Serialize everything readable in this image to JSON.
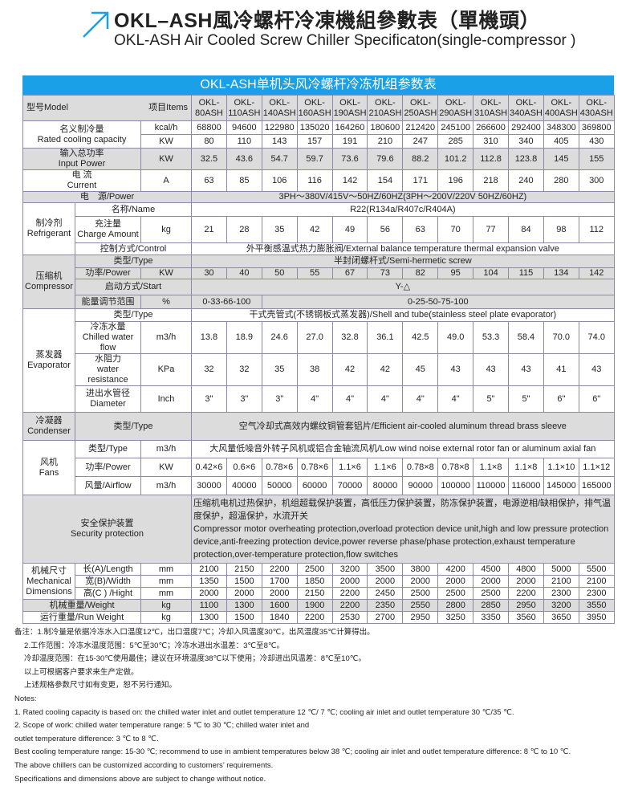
{
  "header": {
    "title": "OKL–ASH風冷螺杆冷凍機組參數表（單機頭）",
    "subtitle": "OKL-ASH Air Cooled Screw Chiller Specificaton(single-compressor )",
    "logo_icon": "arrow-up-right-icon",
    "accent": "#1aa0e6"
  },
  "table": {
    "banner": "OKL-ASH单机头风冷螺杆冷冻机组参数表",
    "model_label": "型号Model",
    "items_label": "项目Items",
    "models": [
      [
        "OKL-",
        "80ASH"
      ],
      [
        "OKL-",
        "110ASH"
      ],
      [
        "OKL-",
        "140ASH"
      ],
      [
        "OKL-",
        "160ASH"
      ],
      [
        "OKL-",
        "190ASH"
      ],
      [
        "OKL-",
        "210ASH"
      ],
      [
        "OKL-",
        "250ASH"
      ],
      [
        "OKL-",
        "290ASH"
      ],
      [
        "OKL-",
        "310ASH"
      ],
      [
        "OKL-",
        "340ASH"
      ],
      [
        "OKL-",
        "400ASH"
      ],
      [
        "OKL-",
        "430ASH"
      ]
    ],
    "cooling": {
      "cn": "名义制冷量",
      "en": "Rated cooling capacity",
      "unit1": "kcal/h",
      "values1": [
        "68800",
        "94600",
        "122980",
        "135020",
        "164260",
        "180600",
        "212420",
        "245100",
        "266600",
        "292400",
        "348300",
        "369800"
      ],
      "unit2": "KW",
      "values2": [
        "80",
        "110",
        "143",
        "157",
        "191",
        "210",
        "247",
        "285",
        "310",
        "340",
        "405",
        "430"
      ]
    },
    "input_power": {
      "cn": "输入总功率",
      "en": "Input Power",
      "unit": "KW",
      "values": [
        "32.5",
        "43.6",
        "54.7",
        "59.7",
        "73.6",
        "79.6",
        "88.2",
        "101.2",
        "112.8",
        "123.8",
        "145",
        "155"
      ]
    },
    "current": {
      "cn": "电 流",
      "en": "Current",
      "unit": "A",
      "values": [
        "63",
        "85",
        "106",
        "116",
        "142",
        "154",
        "171",
        "196",
        "218",
        "240",
        "280",
        "300"
      ]
    },
    "power_supply": {
      "label": "电　源/Power",
      "value": "3PH～380V/415V～50HZ/60HZ(3PH～200V/220V  50HZ/60HZ)"
    },
    "refrigerant": {
      "cn": "制冷剂",
      "en": "Refrigerant",
      "name_label": "名称/Name",
      "name_value": "R22(R134a/R407c/R404A)",
      "charge_cn": "充注量",
      "charge_en": "Charge Amount",
      "charge_unit": "kg",
      "charge_values": [
        "21",
        "28",
        "35",
        "42",
        "49",
        "56",
        "63",
        "70",
        "77",
        "84",
        "98",
        "112"
      ],
      "control_label": "控制方式/Control",
      "control_value": "外平衡感温式热力膨胀阀/External balance temperature thermal expansion valve"
    },
    "compressor": {
      "cn": "压缩机",
      "en": "Compressor",
      "type_label": "类型/Type",
      "type_value": "半封闭螺杆式/Semi-hermetic screw",
      "power_label": "功率/Power",
      "power_unit": "KW",
      "power_values": [
        "30",
        "40",
        "50",
        "55",
        "67",
        "73",
        "82",
        "95",
        "104",
        "115",
        "134",
        "142"
      ],
      "start_label": "启动方式/Start",
      "start_value": "Y-△",
      "energy_label": "能量调节范围",
      "energy_unit": "%",
      "energy_value1": "0-33-66-100",
      "energy_value2": "0-25-50-75-100"
    },
    "evaporator": {
      "cn": "蒸发器",
      "en": "Evaporator",
      "type_label": "类型/Type",
      "type_value": "干式壳管式(不锈钢板式蒸发器)/Shell and tube(stainless steel plate evaporator)",
      "flow_cn": "冷冻水量",
      "flow_en": "Chilled water flow",
      "flow_unit": "m3/h",
      "flow_values": [
        "13.8",
        "18.9",
        "24.6",
        "27.0",
        "32.8",
        "36.1",
        "42.5",
        "49.0",
        "53.3",
        "58.4",
        "70.0",
        "74.0"
      ],
      "res_cn": "水阻力",
      "res_en": "water resistance",
      "res_unit": "KPa",
      "res_values": [
        "32",
        "32",
        "35",
        "38",
        "42",
        "42",
        "45",
        "43",
        "43",
        "43",
        "41",
        "43"
      ],
      "dia_cn": "进出水管径",
      "dia_en": "Diameter",
      "dia_unit": "Inch",
      "dia_values": [
        "3\"",
        "3\"",
        "3\"",
        "4\"",
        "4\"",
        "4\"",
        "4\"",
        "4\"",
        "5\"",
        "5\"",
        "6\"",
        "6\""
      ]
    },
    "condenser": {
      "cn": "冷凝器",
      "en": "Condenser",
      "type_label": "类型/Type",
      "type_value": "空气冷却式高效内螺纹铜管套铝片/Efficient air-cooled aluminum thread brass sleeve"
    },
    "fans": {
      "cn": "风机",
      "en": "Fans",
      "type_label": "类型/Type",
      "type_unit": "m3/h",
      "type_value": "大风量低噪音外转子风机或铝合金轴流风机/Low wind noise external rotor fan or aluminum axial fan",
      "power_label": "功率/Power",
      "power_unit": "KW",
      "power_values": [
        "0.42×6",
        "0.6×6",
        "0.78×6",
        "0.78×6",
        "1.1×6",
        "1.1×6",
        "0.78×8",
        "0.78×8",
        "1.1×8",
        "1.1×8",
        "1.1×10",
        "1.1×12"
      ],
      "airflow_label": "风量/Airflow",
      "airflow_unit": "m3/h",
      "airflow_values": [
        "30000",
        "40000",
        "50000",
        "60000",
        "70000",
        "80000",
        "90000",
        "100000",
        "110000",
        "116000",
        "145000",
        "165000"
      ]
    },
    "security": {
      "cn": "安全保护装置",
      "en": "Security protection",
      "value_cn": "压缩机电机过热保护，机组超载保护装置，高低压力保护装置，防冻保护装置，电源逆相/缺相保护，排气温度保护，超温保护，水流开关",
      "value_en": "Compressor motor overheating protection,overload protection device unit,high and low pressure protection device,anti-freezing protection device,power reverse phase/phase protection,exhaust temperature protection,over-temperature protection,flow switches"
    },
    "dimensions": {
      "cn": "机械尺寸",
      "en1": "Mechanical",
      "en2": "Dimensions",
      "length_label": "长(A)/Length",
      "width_label": "宽(B)/Width",
      "height_label": "高(C ) /Hight",
      "unit": "mm",
      "length_values": [
        "2100",
        "2150",
        "2200",
        "2500",
        "3200",
        "3500",
        "3800",
        "4200",
        "4500",
        "4800",
        "5000",
        "5500"
      ],
      "width_values": [
        "1350",
        "1500",
        "1700",
        "1850",
        "2000",
        "2000",
        "2000",
        "2000",
        "2000",
        "2000",
        "2100",
        "2100"
      ],
      "height_values": [
        "2000",
        "2000",
        "2000",
        "2150",
        "2200",
        "2450",
        "2500",
        "2500",
        "2500",
        "2200",
        "2300",
        "2300"
      ]
    },
    "weight": {
      "label": "机械重量/Weight",
      "unit": "kg",
      "values": [
        "1100",
        "1300",
        "1600",
        "1900",
        "2200",
        "2350",
        "2550",
        "2800",
        "2850",
        "2950",
        "3200",
        "3550"
      ]
    },
    "run_weight": {
      "label": "运行重量/Run Weight",
      "unit": "kg",
      "values": [
        "1300",
        "1500",
        "1840",
        "2200",
        "2530",
        "2700",
        "2950",
        "3250",
        "3350",
        "3560",
        "3650",
        "3950"
      ]
    }
  },
  "notes": {
    "cn": [
      "备注：1.制冷量是依据冷冻水入口温度12℃，出口温度7℃；冷却入风温度30℃，出风温度35℃计算得出。",
      "2.工作范围：冷冻水温度范围：5℃至30℃；冷冻水进出水温差：3℃至8℃。",
      "冷却温度范围：在15-30℃使用最佳；建议在环境温度38℃以下使用；冷却进出风温差：8℃至10℃。",
      "以上可根据客户要求来生产定做。",
      "上述规格参数尺寸如有变更，恕不另行通知。"
    ],
    "en": [
      "Notes:",
      "1. Rated cooling capacity is based on: the chilled water inlet and outlet temperature 12 ℃/ 7 ℃; cooling air inlet and outlet temperature 30 ℃/35 ℃.",
      "2. Scope of work: chilled water temperature range: 5 ℃ to 30 ℃; chilled water inlet and",
      "outlet temperature difference: 3 ℃ to 8 ℃.",
      "Best cooling temperature range: 15-30 ℃; recommend to use in ambient temperatures below 38 ℃; cooling air inlet and outlet temperature difference: 8 ℃ to 10 ℃.",
      " The above chillers can be customized according to customers’  requirements.",
      "Specifications and dimensions above are subject to change without notice."
    ]
  }
}
